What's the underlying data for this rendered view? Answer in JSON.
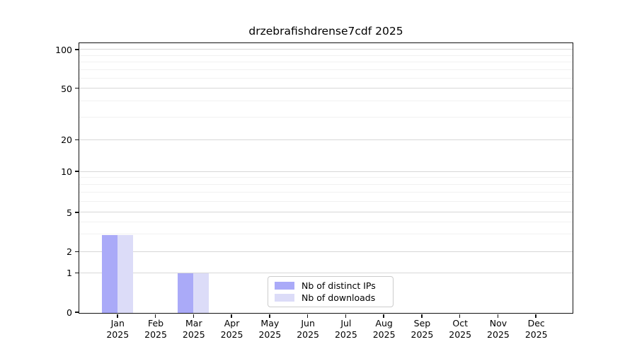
{
  "figure": {
    "title": "drzebrafishdrense7cdf 2025"
  },
  "chart_data": {
    "type": "bar",
    "title": "drzebrafishdrense7cdf 2025",
    "yscale": "log-like with linear segment to 0",
    "yticks": [
      0,
      1,
      2,
      5,
      10,
      20,
      50,
      100
    ],
    "ylim": [
      0,
      100
    ],
    "grid": true,
    "legend_position": "inside-bottom-center",
    "categories": [
      {
        "month": "Jan",
        "year": "2025"
      },
      {
        "month": "Feb",
        "year": "2025"
      },
      {
        "month": "Mar",
        "year": "2025"
      },
      {
        "month": "Apr",
        "year": "2025"
      },
      {
        "month": "May",
        "year": "2025"
      },
      {
        "month": "Jun",
        "year": "2025"
      },
      {
        "month": "Jul",
        "year": "2025"
      },
      {
        "month": "Aug",
        "year": "2025"
      },
      {
        "month": "Sep",
        "year": "2025"
      },
      {
        "month": "Oct",
        "year": "2025"
      },
      {
        "month": "Nov",
        "year": "2025"
      },
      {
        "month": "Dec",
        "year": "2025"
      }
    ],
    "series": [
      {
        "name": "Nb of distinct IPs",
        "color": "#aaaaf8",
        "values": [
          3,
          0,
          1,
          0,
          0,
          0,
          0,
          0,
          0,
          0,
          0,
          0
        ]
      },
      {
        "name": "Nb of downloads",
        "color": "#dcdcf8",
        "values": [
          3,
          0,
          1,
          0,
          0,
          0,
          0,
          0,
          0,
          0,
          0,
          0
        ]
      }
    ]
  },
  "legend": {
    "items": [
      {
        "label": "Nb of distinct IPs",
        "color": "#aaaaf8"
      },
      {
        "label": "Nb of downloads",
        "color": "#dcdcf8"
      }
    ]
  }
}
